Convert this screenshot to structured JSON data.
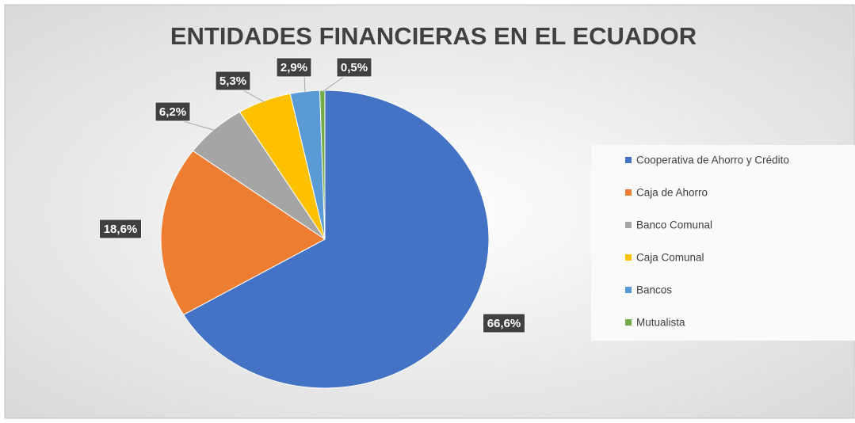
{
  "chart_data": {
    "type": "pie",
    "title": "ENTIDADES FINANCIERAS EN EL ECUADOR",
    "categories": [
      "Cooperativa de Ahorro y Crédito",
      "Caja de Ahorro",
      "Banco Comunal",
      "Caja Comunal",
      "Bancos",
      "Mutualista"
    ],
    "values": [
      66.6,
      18.6,
      6.2,
      5.3,
      2.9,
      0.5
    ],
    "value_labels": [
      "66,6%",
      "18,6%",
      "6,2%",
      "5,3%",
      "2,9%",
      "0,5%"
    ],
    "colors": [
      "#4472c4",
      "#ed7d31",
      "#a5a5a5",
      "#ffc000",
      "#5b9bd5",
      "#70ad47"
    ],
    "legend": "right"
  }
}
